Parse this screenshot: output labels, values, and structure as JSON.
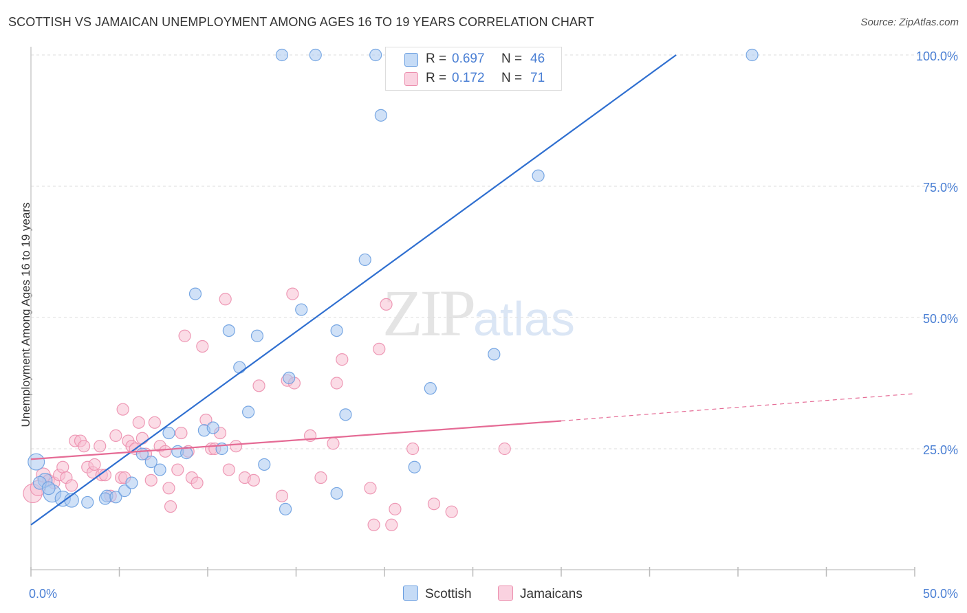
{
  "header": {
    "title": "SCOTTISH VS JAMAICAN UNEMPLOYMENT AMONG AGES 16 TO 19 YEARS CORRELATION CHART",
    "source": "Source: ZipAtlas.com"
  },
  "watermark": {
    "part1": "ZIP",
    "part2": "atlas"
  },
  "legend": {
    "scottish": {
      "r_label": "R =",
      "r_value": "0.697",
      "n_label": "N =",
      "n_value": "46"
    },
    "jamaicans": {
      "r_label": "R =",
      "r_value": "0.172",
      "n_label": "N =",
      "n_value": "71"
    }
  },
  "bottom_legend": {
    "scottish": "Scottish",
    "jamaicans": "Jamaicans"
  },
  "colors": {
    "scottish_fill": "#aac8f0",
    "scottish_stroke": "#6a9ee0",
    "scottish_line": "#2f6fd0",
    "jamaicans_fill": "#f8c0d2",
    "jamaicans_stroke": "#ec8fae",
    "jamaicans_line": "#e56b95",
    "grid": "#dddddd",
    "tick_text": "#4a7fd4"
  },
  "chart_data": {
    "type": "scatter",
    "title": "SCOTTISH VS JAMAICAN UNEMPLOYMENT AMONG AGES 16 TO 19 YEARS CORRELATION CHART",
    "xlabel": "",
    "ylabel": "Unemployment Among Ages 16 to 19 years",
    "xlim": [
      0,
      50
    ],
    "ylim": [
      0,
      105
    ],
    "x_tick_labels": [
      "0.0%",
      "50.0%"
    ],
    "y_ticks": [
      25,
      50,
      75,
      100
    ],
    "y_tick_labels": [
      "25.0%",
      "50.0%",
      "75.0%",
      "100.0%"
    ],
    "grid": true,
    "series": [
      {
        "name": "Scottish",
        "r": 0.697,
        "n": 46,
        "trend": {
          "x": [
            0,
            36.5
          ],
          "y": [
            10.5,
            100
          ]
        },
        "points": [
          {
            "x": 0.3,
            "y": 22.5,
            "s": 1.4
          },
          {
            "x": 0.8,
            "y": 19,
            "s": 1.2
          },
          {
            "x": 1.2,
            "y": 16.5,
            "s": 1.5
          },
          {
            "x": 1.8,
            "y": 15.5,
            "s": 1.3
          },
          {
            "x": 2.3,
            "y": 15.2,
            "s": 1.2
          },
          {
            "x": 3.2,
            "y": 14.8,
            "s": 1
          },
          {
            "x": 4.3,
            "y": 16,
            "s": 1
          },
          {
            "x": 4.2,
            "y": 15.5,
            "s": 1
          },
          {
            "x": 4.8,
            "y": 15.8,
            "s": 1
          },
          {
            "x": 5.3,
            "y": 17,
            "s": 1
          },
          {
            "x": 5.7,
            "y": 18.5,
            "s": 1
          },
          {
            "x": 6.3,
            "y": 24,
            "s": 1
          },
          {
            "x": 6.8,
            "y": 22.5,
            "s": 1
          },
          {
            "x": 7.3,
            "y": 21,
            "s": 1
          },
          {
            "x": 7.8,
            "y": 28,
            "s": 1
          },
          {
            "x": 8.3,
            "y": 24.5,
            "s": 1
          },
          {
            "x": 8.8,
            "y": 24.2,
            "s": 1
          },
          {
            "x": 9.3,
            "y": 54.5,
            "s": 1
          },
          {
            "x": 9.8,
            "y": 28.5,
            "s": 1
          },
          {
            "x": 10.3,
            "y": 29,
            "s": 1
          },
          {
            "x": 10.8,
            "y": 25,
            "s": 1
          },
          {
            "x": 11.2,
            "y": 47.5,
            "s": 1
          },
          {
            "x": 11.8,
            "y": 40.5,
            "s": 1
          },
          {
            "x": 12.3,
            "y": 32,
            "s": 1
          },
          {
            "x": 12.8,
            "y": 46.5,
            "s": 1
          },
          {
            "x": 13.2,
            "y": 22,
            "s": 1
          },
          {
            "x": 14.2,
            "y": 100,
            "s": 1
          },
          {
            "x": 14.6,
            "y": 38.5,
            "s": 1
          },
          {
            "x": 14.4,
            "y": 13.5,
            "s": 1
          },
          {
            "x": 15.3,
            "y": 51.5,
            "s": 1
          },
          {
            "x": 16.1,
            "y": 100,
            "s": 1
          },
          {
            "x": 17.3,
            "y": 47.5,
            "s": 1
          },
          {
            "x": 17.3,
            "y": 16.5,
            "s": 1
          },
          {
            "x": 17.8,
            "y": 31.5,
            "s": 1
          },
          {
            "x": 18.9,
            "y": 61,
            "s": 1
          },
          {
            "x": 19.5,
            "y": 100,
            "s": 1
          },
          {
            "x": 19.8,
            "y": 88.5,
            "s": 1
          },
          {
            "x": 20.5,
            "y": 100,
            "s": 1
          },
          {
            "x": 21.4,
            "y": 100,
            "s": 1
          },
          {
            "x": 21.7,
            "y": 21.5,
            "s": 1
          },
          {
            "x": 22.6,
            "y": 36.5,
            "s": 1
          },
          {
            "x": 26.2,
            "y": 43,
            "s": 1
          },
          {
            "x": 28.7,
            "y": 77,
            "s": 1
          },
          {
            "x": 40.8,
            "y": 100,
            "s": 1
          },
          {
            "x": 0.5,
            "y": 18.5,
            "s": 1.1
          },
          {
            "x": 1.0,
            "y": 17.5,
            "s": 1.1
          }
        ]
      },
      {
        "name": "Jamaicans",
        "r": 0.172,
        "n": 71,
        "trend": {
          "x": [
            0,
            30
          ],
          "y": [
            23,
            30.3
          ]
        },
        "trend_extension": {
          "x": [
            30,
            50
          ],
          "y": [
            30.3,
            35.5
          ]
        },
        "points": [
          {
            "x": 0.1,
            "y": 16.5,
            "s": 1.6
          },
          {
            "x": 0.4,
            "y": 17.5,
            "s": 1.3
          },
          {
            "x": 0.7,
            "y": 20,
            "s": 1.2
          },
          {
            "x": 1.0,
            "y": 19,
            "s": 1
          },
          {
            "x": 1.3,
            "y": 18.5,
            "s": 1
          },
          {
            "x": 1.6,
            "y": 20,
            "s": 1
          },
          {
            "x": 1.8,
            "y": 21.5,
            "s": 1
          },
          {
            "x": 2.0,
            "y": 19.5,
            "s": 1
          },
          {
            "x": 2.3,
            "y": 18,
            "s": 1
          },
          {
            "x": 2.5,
            "y": 26.5,
            "s": 1
          },
          {
            "x": 2.8,
            "y": 26.5,
            "s": 1
          },
          {
            "x": 3.0,
            "y": 25.5,
            "s": 1
          },
          {
            "x": 3.2,
            "y": 21.5,
            "s": 1
          },
          {
            "x": 3.5,
            "y": 20.5,
            "s": 1
          },
          {
            "x": 3.6,
            "y": 22,
            "s": 1
          },
          {
            "x": 3.9,
            "y": 25.5,
            "s": 1
          },
          {
            "x": 4.0,
            "y": 20,
            "s": 1
          },
          {
            "x": 4.2,
            "y": 20,
            "s": 1
          },
          {
            "x": 4.5,
            "y": 16,
            "s": 1
          },
          {
            "x": 4.8,
            "y": 27.5,
            "s": 1
          },
          {
            "x": 5.1,
            "y": 19.5,
            "s": 1
          },
          {
            "x": 5.3,
            "y": 19.5,
            "s": 1
          },
          {
            "x": 5.2,
            "y": 32.5,
            "s": 1
          },
          {
            "x": 5.5,
            "y": 26.5,
            "s": 1
          },
          {
            "x": 5.7,
            "y": 25.5,
            "s": 1
          },
          {
            "x": 5.9,
            "y": 25,
            "s": 1
          },
          {
            "x": 6.1,
            "y": 30,
            "s": 1
          },
          {
            "x": 6.3,
            "y": 27,
            "s": 1
          },
          {
            "x": 6.5,
            "y": 24,
            "s": 1
          },
          {
            "x": 6.8,
            "y": 19,
            "s": 1
          },
          {
            "x": 7.0,
            "y": 30,
            "s": 1
          },
          {
            "x": 7.3,
            "y": 25.5,
            "s": 1
          },
          {
            "x": 7.6,
            "y": 24.5,
            "s": 1
          },
          {
            "x": 7.8,
            "y": 17.5,
            "s": 1
          },
          {
            "x": 7.9,
            "y": 14,
            "s": 1
          },
          {
            "x": 8.3,
            "y": 21,
            "s": 1
          },
          {
            "x": 8.5,
            "y": 28,
            "s": 1
          },
          {
            "x": 8.7,
            "y": 46.5,
            "s": 1
          },
          {
            "x": 8.9,
            "y": 24.5,
            "s": 1
          },
          {
            "x": 9.1,
            "y": 19.5,
            "s": 1
          },
          {
            "x": 9.4,
            "y": 18.5,
            "s": 1
          },
          {
            "x": 9.7,
            "y": 44.5,
            "s": 1
          },
          {
            "x": 9.9,
            "y": 30.5,
            "s": 1
          },
          {
            "x": 10.2,
            "y": 25,
            "s": 1
          },
          {
            "x": 10.4,
            "y": 25,
            "s": 1
          },
          {
            "x": 10.7,
            "y": 28,
            "s": 1
          },
          {
            "x": 11.0,
            "y": 53.5,
            "s": 1
          },
          {
            "x": 11.2,
            "y": 21,
            "s": 1
          },
          {
            "x": 11.6,
            "y": 25.5,
            "s": 1
          },
          {
            "x": 12.1,
            "y": 19.5,
            "s": 1
          },
          {
            "x": 12.6,
            "y": 19,
            "s": 1
          },
          {
            "x": 12.9,
            "y": 37,
            "s": 1
          },
          {
            "x": 14.2,
            "y": 16,
            "s": 1
          },
          {
            "x": 14.5,
            "y": 38,
            "s": 1
          },
          {
            "x": 14.8,
            "y": 54.5,
            "s": 1
          },
          {
            "x": 14.9,
            "y": 37.5,
            "s": 1
          },
          {
            "x": 15.8,
            "y": 27.5,
            "s": 1
          },
          {
            "x": 16.4,
            "y": 19.5,
            "s": 1
          },
          {
            "x": 17.1,
            "y": 26,
            "s": 1
          },
          {
            "x": 17.3,
            "y": 37.5,
            "s": 1
          },
          {
            "x": 17.6,
            "y": 42,
            "s": 1
          },
          {
            "x": 19.2,
            "y": 17.5,
            "s": 1
          },
          {
            "x": 19.4,
            "y": 10.5,
            "s": 1
          },
          {
            "x": 19.7,
            "y": 44,
            "s": 1
          },
          {
            "x": 20.1,
            "y": 52.5,
            "s": 1
          },
          {
            "x": 20.4,
            "y": 10.5,
            "s": 1
          },
          {
            "x": 20.6,
            "y": 13.5,
            "s": 1
          },
          {
            "x": 21.6,
            "y": 25,
            "s": 1
          },
          {
            "x": 22.8,
            "y": 14.5,
            "s": 1
          },
          {
            "x": 23.8,
            "y": 13,
            "s": 1
          },
          {
            "x": 26.8,
            "y": 25,
            "s": 1
          }
        ]
      }
    ]
  }
}
